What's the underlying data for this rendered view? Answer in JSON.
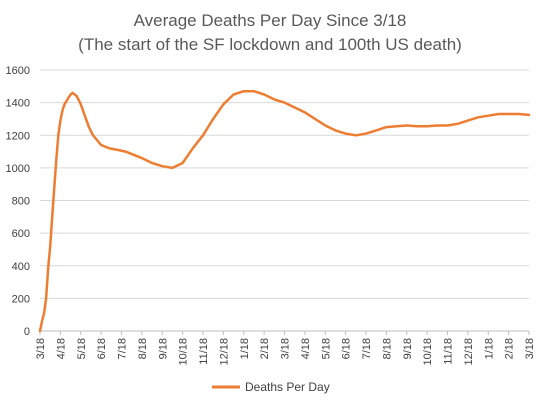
{
  "chart_data": {
    "type": "line",
    "title": "Average Deaths Per Day Since 3/18",
    "subtitle": "(The start of the SF lockdown and 100th US death)",
    "xlabel": "",
    "ylabel": "",
    "ylim": [
      0,
      1600
    ],
    "y_ticks": [
      0,
      200,
      400,
      600,
      800,
      1000,
      1200,
      1400,
      1600
    ],
    "x_ticks": [
      "3/18",
      "4/18",
      "5/18",
      "6/18",
      "7/18",
      "8/18",
      "9/18",
      "10/18",
      "11/18",
      "12/18",
      "1/18",
      "2/18",
      "3/18",
      "4/18",
      "5/18",
      "6/18",
      "7/18",
      "8/18",
      "9/18",
      "10/18",
      "11/18",
      "12/18",
      "1/18",
      "2/18",
      "3/18"
    ],
    "grid": "horizontal",
    "legend_position": "bottom",
    "colors": {
      "series": "#ED7D31",
      "grid": "#D9D9D9",
      "axis": "#BFBFBF"
    },
    "series": [
      {
        "name": "Deaths Per Day",
        "x_months": [
          0,
          0.1,
          0.2,
          0.3,
          0.4,
          0.5,
          0.6,
          0.7,
          0.8,
          0.9,
          1.0,
          1.1,
          1.2,
          1.3,
          1.4,
          1.5,
          1.6,
          1.8,
          2.0,
          2.2,
          2.4,
          2.6,
          3.0,
          3.4,
          3.8,
          4.2,
          4.6,
          5.0,
          5.5,
          6.0,
          6.5,
          7.0,
          7.5,
          8.0,
          8.5,
          9.0,
          9.5,
          10.0,
          10.5,
          11.0,
          11.5,
          12.0,
          12.5,
          13.0,
          13.5,
          14.0,
          14.5,
          15.0,
          15.5,
          16.0,
          16.5,
          17.0,
          17.5,
          18.0,
          18.5,
          19.0,
          19.5,
          20.0,
          20.5,
          21.0,
          21.5,
          22.0,
          22.5,
          23.0,
          23.5,
          24.0
        ],
        "values": [
          0,
          60,
          110,
          200,
          380,
          520,
          700,
          880,
          1050,
          1200,
          1290,
          1350,
          1390,
          1410,
          1430,
          1450,
          1460,
          1440,
          1390,
          1320,
          1250,
          1200,
          1140,
          1120,
          1110,
          1100,
          1080,
          1060,
          1030,
          1010,
          1000,
          1030,
          1120,
          1200,
          1300,
          1390,
          1450,
          1470,
          1470,
          1450,
          1420,
          1400,
          1370,
          1340,
          1300,
          1260,
          1230,
          1210,
          1200,
          1210,
          1230,
          1250,
          1255,
          1260,
          1255,
          1255,
          1260,
          1260,
          1270,
          1290,
          1310,
          1320,
          1330,
          1330,
          1330,
          1325
        ]
      }
    ]
  }
}
